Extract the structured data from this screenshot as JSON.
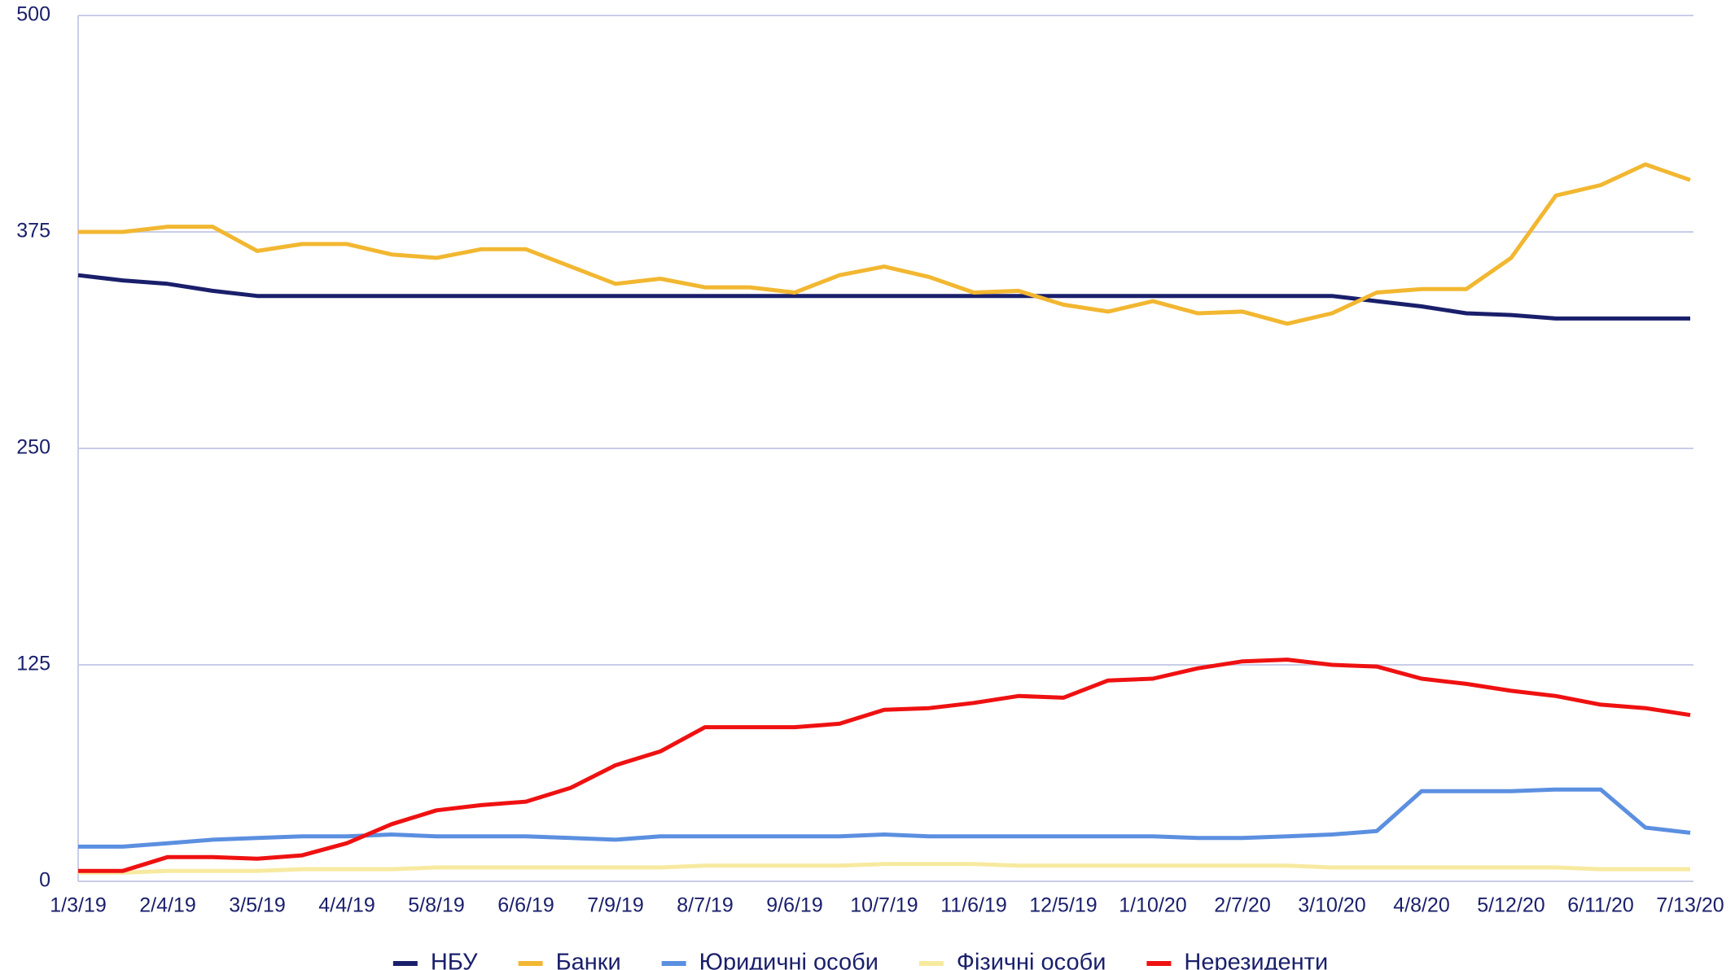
{
  "chart_data": {
    "type": "line",
    "categories": [
      "1/3/19",
      null,
      "2/4/19",
      null,
      "3/5/19",
      null,
      "4/4/19",
      null,
      "5/8/19",
      null,
      "6/6/19",
      null,
      "7/9/19",
      null,
      "8/7/19",
      null,
      "9/6/19",
      null,
      "10/7/19",
      null,
      "11/6/19",
      null,
      "12/5/19",
      null,
      "1/10/20",
      null,
      "2/7/20",
      null,
      "3/10/20",
      null,
      "4/8/20",
      null,
      "5/12/20",
      null,
      "6/11/20",
      null,
      "7/13/20"
    ],
    "series": [
      {
        "name": "НБУ",
        "color": "#1a1f6b",
        "values": [
          350,
          347,
          345,
          341,
          338,
          338,
          338,
          338,
          338,
          338,
          338,
          338,
          338,
          338,
          338,
          338,
          338,
          338,
          338,
          338,
          338,
          338,
          338,
          338,
          338,
          338,
          338,
          338,
          338,
          335,
          332,
          328,
          327,
          325,
          325,
          325,
          325
        ]
      },
      {
        "name": "Банки",
        "color": "#f2b731",
        "values": [
          375,
          375,
          378,
          378,
          364,
          368,
          368,
          362,
          360,
          365,
          365,
          355,
          345,
          348,
          343,
          343,
          340,
          350,
          355,
          349,
          340,
          341,
          333,
          329,
          335,
          328,
          329,
          322,
          328,
          340,
          342,
          342,
          360,
          396,
          402,
          414,
          405
        ]
      },
      {
        "name": "Юридичні особи",
        "color": "#5b8fe0",
        "values": [
          20,
          20,
          22,
          24,
          25,
          26,
          26,
          27,
          26,
          26,
          26,
          25,
          24,
          26,
          26,
          26,
          26,
          26,
          27,
          26,
          26,
          26,
          26,
          26,
          26,
          25,
          25,
          26,
          27,
          29,
          52,
          52,
          52,
          53,
          53,
          31,
          28
        ]
      },
      {
        "name": "Фізичні особи",
        "color": "#f7eaa0",
        "values": [
          5,
          5,
          6,
          6,
          6,
          7,
          7,
          7,
          8,
          8,
          8,
          8,
          8,
          8,
          9,
          9,
          9,
          9,
          10,
          10,
          10,
          9,
          9,
          9,
          9,
          9,
          9,
          9,
          8,
          8,
          8,
          8,
          8,
          8,
          7,
          7,
          7
        ]
      },
      {
        "name": "Нерезиденти",
        "color": "#ef1111",
        "values": [
          6,
          6,
          14,
          14,
          13,
          15,
          22,
          33,
          41,
          44,
          46,
          54,
          67,
          75,
          89,
          89,
          89,
          91,
          99,
          100,
          103,
          107,
          106,
          116,
          117,
          123,
          127,
          128,
          125,
          124,
          117,
          114,
          110,
          107,
          102,
          100,
          96
        ]
      }
    ],
    "ylim": [
      0,
      500
    ],
    "yticks": [
      0,
      125,
      250,
      375,
      500
    ],
    "grid": true,
    "legend": "bottom"
  }
}
